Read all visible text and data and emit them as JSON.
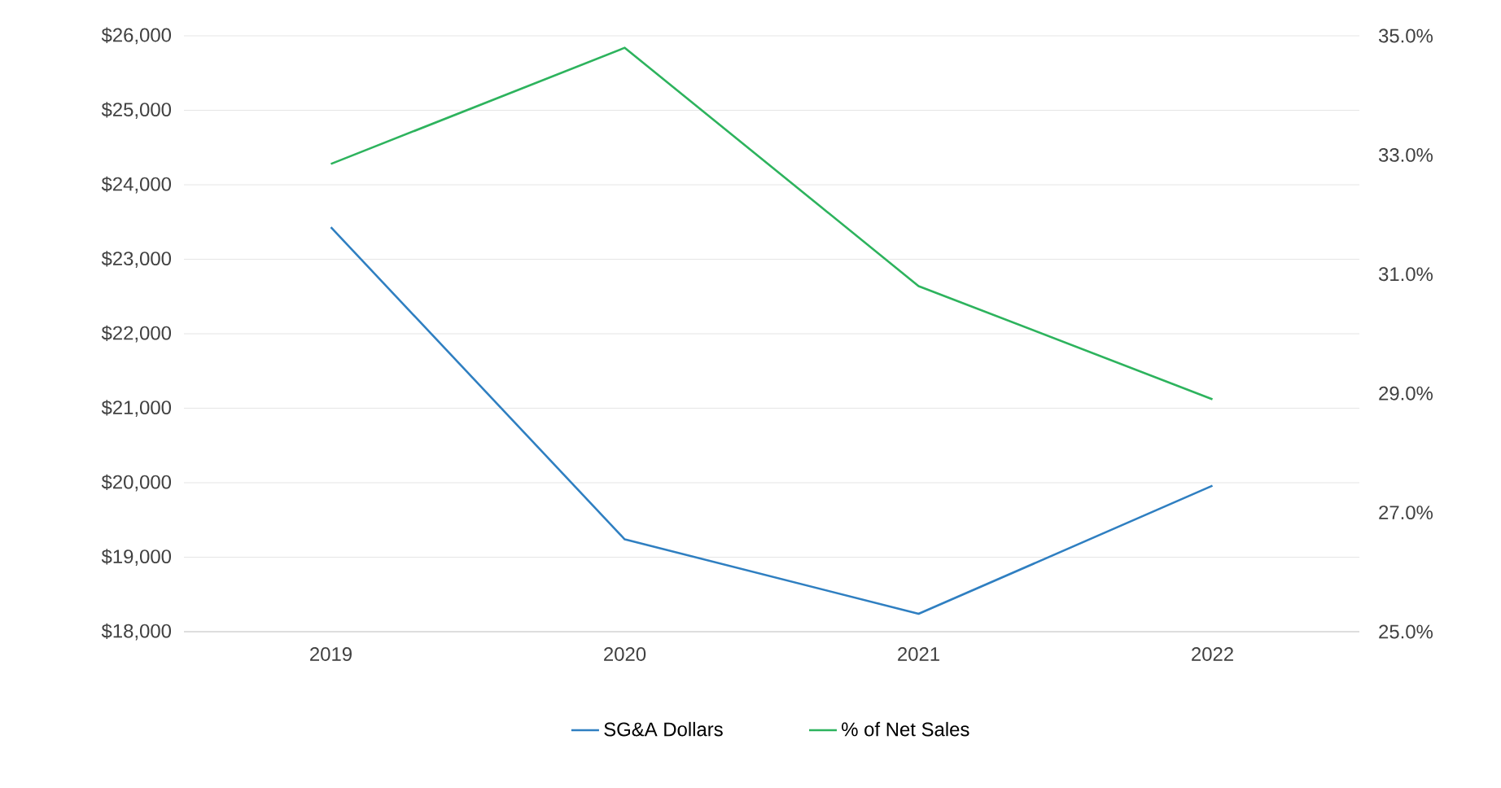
{
  "chart_data": {
    "type": "line",
    "categories": [
      "2019",
      "2020",
      "2021",
      "2022"
    ],
    "series": [
      {
        "name": "SG&A Dollars",
        "color": "#2f7fc1",
        "values": [
          23430,
          19240,
          18240,
          19960
        ]
      },
      {
        "name": "% of Net Sales",
        "color": "#2db35d",
        "axis": "y2",
        "values": [
          32.85,
          34.8,
          30.8,
          28.9
        ]
      }
    ],
    "ylim": [
      18000,
      26000
    ],
    "yticks": [
      {
        "value": 18000,
        "label": "$18,000"
      },
      {
        "value": 19000,
        "label": "$19,000"
      },
      {
        "value": 20000,
        "label": "$20,000"
      },
      {
        "value": 21000,
        "label": "$21,000"
      },
      {
        "value": 22000,
        "label": "$22,000"
      },
      {
        "value": 23000,
        "label": "$23,000"
      },
      {
        "value": 24000,
        "label": "$24,000"
      },
      {
        "value": 25000,
        "label": "$25,000"
      },
      {
        "value": 26000,
        "label": "$26,000"
      }
    ],
    "y2lim": [
      25,
      35
    ],
    "y2ticks": [
      {
        "value": 25,
        "label": "25.0%"
      },
      {
        "value": 27,
        "label": "27.0%"
      },
      {
        "value": 29,
        "label": "29.0%"
      },
      {
        "value": 31,
        "label": "31.0%"
      },
      {
        "value": 33,
        "label": "33.0%"
      },
      {
        "value": 35,
        "label": "35.0%"
      }
    ],
    "grid": "y",
    "legend": "bottom",
    "marker": "none",
    "line_style": "solid"
  }
}
